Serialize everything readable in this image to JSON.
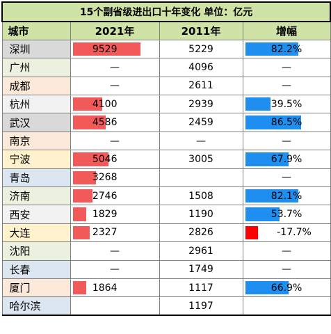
{
  "title": "15个副省级进出口十年变化   单位：亿元",
  "headers": [
    "城市",
    "2021年",
    "2011年",
    "增幅"
  ],
  "colors": {
    "header_bg": "#cfe3a6",
    "bar_red": "#f25a5a",
    "bar_blue": "#1e8ff0",
    "neg_red": "#ff0000"
  },
  "rows": [
    {
      "city": "深圳",
      "city_bg": "#d9d9d9",
      "v2021": "9529",
      "n2021": 9529,
      "v2011": "5229",
      "growth": "82.2%",
      "g": 82.2
    },
    {
      "city": "广州",
      "city_bg": "#ebf1de",
      "v2021": "—",
      "n2021": 0,
      "v2011": "4096",
      "growth": "—",
      "g": 0
    },
    {
      "city": "成都",
      "city_bg": "#fde9d9",
      "v2021": "—",
      "n2021": 0,
      "v2011": "2611",
      "growth": "—",
      "g": 0
    },
    {
      "city": "杭州",
      "city_bg": "#f2f2f2",
      "v2021": "4100",
      "n2021": 4100,
      "v2011": "2939",
      "growth": "39.5%",
      "g": 39.5
    },
    {
      "city": "武汉",
      "city_bg": "#d9d9d9",
      "v2021": "4586",
      "n2021": 4586,
      "v2011": "2459",
      "growth": "86.5%",
      "g": 86.5
    },
    {
      "city": "南京",
      "city_bg": "#fde9d9",
      "v2021": "—",
      "n2021": 0,
      "v2011": "—",
      "growth": "—",
      "g": 0
    },
    {
      "city": "宁波",
      "city_bg": "#fff2cc",
      "v2021": "5046",
      "n2021": 5046,
      "v2011": "3005",
      "growth": "67.9%",
      "g": 67.9
    },
    {
      "city": "青岛",
      "city_bg": "#dce6f1",
      "v2021": "3268",
      "n2021": 3268,
      "v2011": "",
      "growth": "—",
      "g": 0
    },
    {
      "city": "济南",
      "city_bg": "#ebf1de",
      "v2021": "2746",
      "n2021": 2746,
      "v2011": "1508",
      "growth": "82.1%",
      "g": 82.1
    },
    {
      "city": "西安",
      "city_bg": "#f2f2f2",
      "v2021": "1829",
      "n2021": 1829,
      "v2011": "1190",
      "growth": "53.7%",
      "g": 53.7
    },
    {
      "city": "大连",
      "city_bg": "#fff2cc",
      "v2021": "2327",
      "n2021": 2327,
      "v2011": "2826",
      "growth": "-17.7%",
      "g": -17.7
    },
    {
      "city": "沈阳",
      "city_bg": "#ebf1de",
      "v2021": "—",
      "n2021": 0,
      "v2011": "2961",
      "growth": "—",
      "g": 0
    },
    {
      "city": "长春",
      "city_bg": "#dce6f1",
      "v2021": "—",
      "n2021": 0,
      "v2011": "1749",
      "growth": "—",
      "g": 0
    },
    {
      "city": "厦门",
      "city_bg": "#fde9d9",
      "v2021": "1864",
      "n2021": 1864,
      "v2011": "1117",
      "growth": "66.9%",
      "g": 66.9
    },
    {
      "city": "哈尔滨",
      "city_bg": "#dce6f1",
      "v2021": "",
      "n2021": 0,
      "v2011": "1197",
      "growth": "",
      "g": 0
    }
  ]
}
